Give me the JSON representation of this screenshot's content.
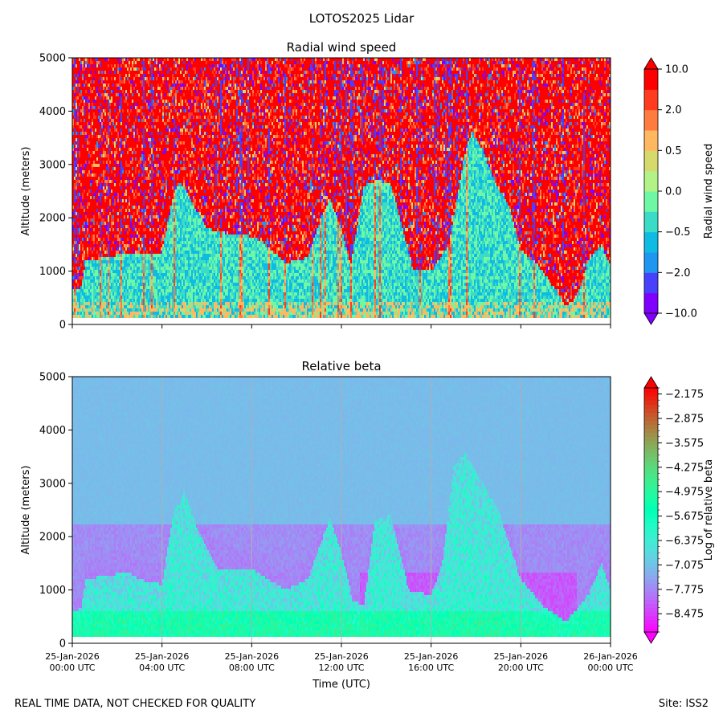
{
  "figure": {
    "suptitle": "LOTOS2025 Lidar",
    "footer_left": "REAL TIME DATA, NOT CHECKED FOR QUALITY",
    "footer_right": "Site: ISS2"
  },
  "chart_data": [
    {
      "type": "heatmap",
      "title": "Radial wind speed",
      "xlabel": "",
      "ylabel": "Altitude (meters)",
      "ylim": [
        0,
        5000
      ],
      "yticks": [
        0,
        1000,
        2000,
        3000,
        4000,
        5000
      ],
      "x_start_hour": 0,
      "x_end_hour": 24,
      "xticks_hours": [
        0,
        4,
        8,
        12,
        16,
        20,
        24
      ],
      "xtick_labels": [],
      "colorbar": {
        "label": "Radial wind speed",
        "levels": [
          -10.0,
          -5.0,
          -2.0,
          -1.0,
          -0.5,
          -0.2,
          0.0,
          0.2,
          0.5,
          1.0,
          2.0,
          5.0,
          10.0
        ],
        "tick_labels": [
          "10.0",
          "2.0",
          "0.5",
          "0.0",
          "−0.5",
          "−2.0",
          "−10.0"
        ],
        "tick_values": [
          10.0,
          2.0,
          0.5,
          0.0,
          -0.5,
          -2.0,
          -10.0
        ],
        "colors": [
          "#8000ff",
          "#4841fb",
          "#1f96f0",
          "#10bbe3",
          "#3bdcc7",
          "#6ef7a5",
          "#b2f287",
          "#d6d96b",
          "#ffb860",
          "#ff7b3f",
          "#ff3c1f",
          "#ff0000"
        ],
        "extend": "both"
      },
      "profiles": {
        "boundary_layer_top_m": [
          [
            0.0,
            650
          ],
          [
            0.4,
            700
          ],
          [
            0.6,
            1200
          ],
          [
            1.5,
            1250
          ],
          [
            2.5,
            1350
          ],
          [
            3.5,
            1300
          ],
          [
            4.0,
            1350
          ],
          [
            4.5,
            2400
          ],
          [
            4.8,
            2700
          ],
          [
            5.2,
            2400
          ],
          [
            6.0,
            1800
          ],
          [
            7.0,
            1700
          ],
          [
            8.0,
            1650
          ],
          [
            8.5,
            1550
          ],
          [
            9.5,
            1150
          ],
          [
            10.5,
            1250
          ],
          [
            11.0,
            1900
          ],
          [
            11.5,
            2350
          ],
          [
            12.0,
            1800
          ],
          [
            12.4,
            1100
          ],
          [
            13.0,
            2600
          ],
          [
            13.6,
            2700
          ],
          [
            14.2,
            2650
          ],
          [
            14.6,
            2000
          ],
          [
            15.2,
            1000
          ],
          [
            16.0,
            1000
          ],
          [
            16.8,
            1500
          ],
          [
            17.5,
            3200
          ],
          [
            17.8,
            3600
          ],
          [
            18.3,
            3300
          ],
          [
            18.8,
            2700
          ],
          [
            19.5,
            2200
          ],
          [
            20.0,
            1400
          ],
          [
            20.8,
            1100
          ],
          [
            21.3,
            800
          ],
          [
            22.0,
            350
          ],
          [
            22.5,
            500
          ],
          [
            23.0,
            1200
          ],
          [
            23.6,
            1500
          ],
          [
            24.0,
            1100
          ]
        ]
      }
    },
    {
      "type": "heatmap",
      "title": "Relative beta",
      "xlabel": "Time (UTC)",
      "ylabel": "Altitude (meters)",
      "ylim": [
        0,
        5000
      ],
      "yticks": [
        0,
        1000,
        2000,
        3000,
        4000,
        5000
      ],
      "x_start_hour": 0,
      "x_end_hour": 24,
      "xticks_hours": [
        0,
        4,
        8,
        12,
        16,
        20,
        24
      ],
      "xtick_labels": [
        [
          "25-Jan-2026",
          "00:00 UTC"
        ],
        [
          "25-Jan-2026",
          "04:00 UTC"
        ],
        [
          "25-Jan-2026",
          "08:00 UTC"
        ],
        [
          "25-Jan-2026",
          "12:00 UTC"
        ],
        [
          "25-Jan-2026",
          "16:00 UTC"
        ],
        [
          "25-Jan-2026",
          "20:00 UTC"
        ],
        [
          "26-Jan-2026",
          "00:00 UTC"
        ]
      ],
      "grid": "x",
      "colorbar": {
        "label": "Log of relative beta",
        "range": [
          -9.0,
          -2.0
        ],
        "tick_labels": [
          "−2.175",
          "−2.875",
          "−3.575",
          "−4.275",
          "−4.975",
          "−5.675",
          "−6.375",
          "−7.075",
          "−7.775",
          "−8.475"
        ],
        "tick_values": [
          -2.175,
          -2.875,
          -3.575,
          -4.275,
          -4.975,
          -5.675,
          -6.375,
          -7.075,
          -7.775,
          -8.475
        ],
        "extend": "both"
      },
      "profiles": {
        "aerosol_top_m": [
          [
            0.0,
            600
          ],
          [
            0.4,
            650
          ],
          [
            0.6,
            1200
          ],
          [
            2.0,
            1300
          ],
          [
            2.5,
            1350
          ],
          [
            3.0,
            1200
          ],
          [
            4.0,
            1100
          ],
          [
            4.5,
            2400
          ],
          [
            5.0,
            2900
          ],
          [
            5.5,
            2200
          ],
          [
            6.5,
            1400
          ],
          [
            8.0,
            1400
          ],
          [
            9.5,
            1000
          ],
          [
            10.5,
            1200
          ],
          [
            11.0,
            1800
          ],
          [
            11.5,
            2350
          ],
          [
            12.0,
            1700
          ],
          [
            12.5,
            800
          ],
          [
            13.0,
            700
          ],
          [
            13.5,
            2300
          ],
          [
            14.2,
            2400
          ],
          [
            15.0,
            1000
          ],
          [
            16.0,
            900
          ],
          [
            16.5,
            1500
          ],
          [
            17.0,
            3300
          ],
          [
            17.5,
            3600
          ],
          [
            18.0,
            3200
          ],
          [
            19.0,
            2500
          ],
          [
            20.0,
            1200
          ],
          [
            21.0,
            700
          ],
          [
            22.0,
            400
          ],
          [
            23.0,
            900
          ],
          [
            23.6,
            1500
          ],
          [
            24.0,
            1000
          ]
        ]
      }
    }
  ]
}
